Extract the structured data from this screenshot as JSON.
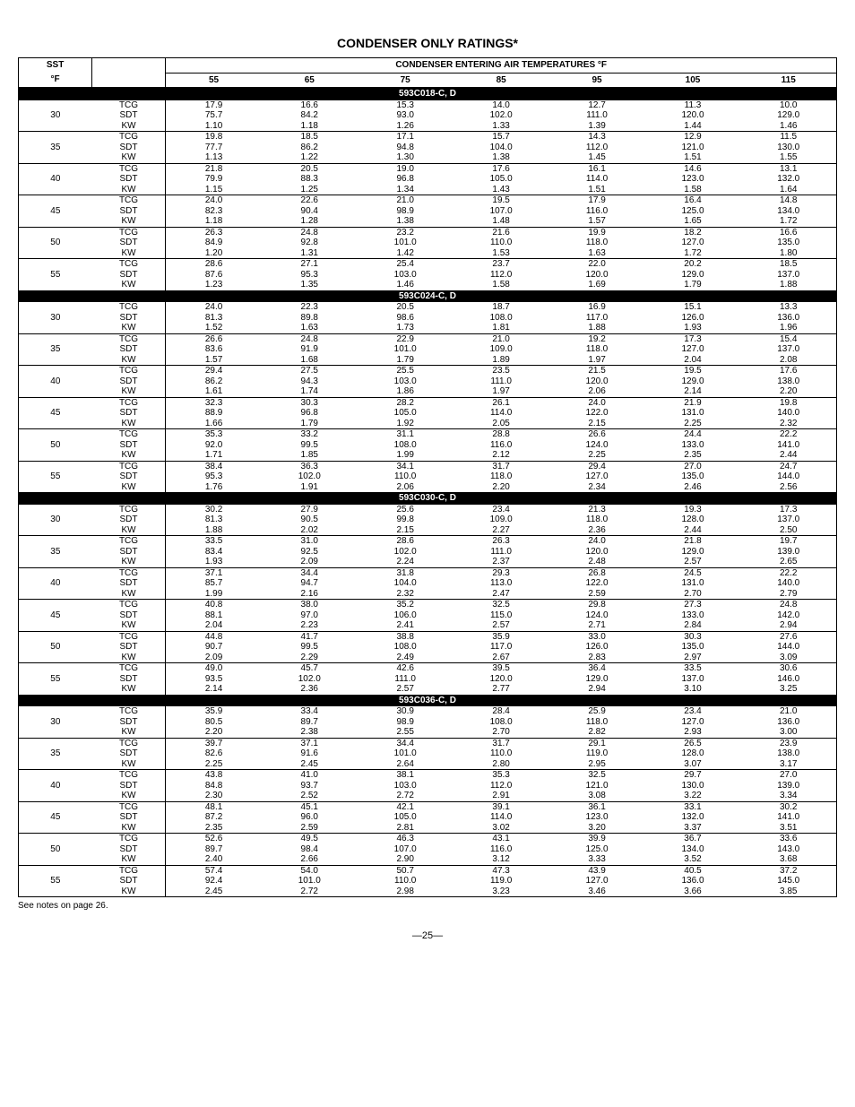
{
  "title": "CONDENSER ONLY RATINGS*",
  "footnote": "See notes on page 26.",
  "page_num": "—25—",
  "header": {
    "sst_label": "SST",
    "sst_unit": "°F",
    "span_label": "CONDENSER ENTERING AIR TEMPERATURES °F",
    "temps": [
      "55",
      "65",
      "75",
      "85",
      "95",
      "105",
      "115"
    ]
  },
  "params": [
    "TCG",
    "SDT",
    "KW"
  ],
  "sst_values": [
    "30",
    "35",
    "40",
    "45",
    "50",
    "55"
  ],
  "colors": {
    "section_bg": "#000000",
    "section_fg": "#ffffff",
    "border": "#000000"
  },
  "sections": [
    {
      "label": "593C018-C, D",
      "rows": [
        [
          [
            "17.9",
            "75.7",
            "1.10"
          ],
          [
            "16.6",
            "84.2",
            "1.18"
          ],
          [
            "15.3",
            "93.0",
            "1.26"
          ],
          [
            "14.0",
            "102.0",
            "1.33"
          ],
          [
            "12.7",
            "111.0",
            "1.39"
          ],
          [
            "11.3",
            "120.0",
            "1.44"
          ],
          [
            "10.0",
            "129.0",
            "1.46"
          ]
        ],
        [
          [
            "19.8",
            "77.7",
            "1.13"
          ],
          [
            "18.5",
            "86.2",
            "1.22"
          ],
          [
            "17.1",
            "94.8",
            "1.30"
          ],
          [
            "15.7",
            "104.0",
            "1.38"
          ],
          [
            "14.3",
            "112.0",
            "1.45"
          ],
          [
            "12.9",
            "121.0",
            "1.51"
          ],
          [
            "11.5",
            "130.0",
            "1.55"
          ]
        ],
        [
          [
            "21.8",
            "79.9",
            "1.15"
          ],
          [
            "20.5",
            "88.3",
            "1.25"
          ],
          [
            "19.0",
            "96.8",
            "1.34"
          ],
          [
            "17.6",
            "105.0",
            "1.43"
          ],
          [
            "16.1",
            "114.0",
            "1.51"
          ],
          [
            "14.6",
            "123.0",
            "1.58"
          ],
          [
            "13.1",
            "132.0",
            "1.64"
          ]
        ],
        [
          [
            "24.0",
            "82.3",
            "1.18"
          ],
          [
            "22.6",
            "90.4",
            "1.28"
          ],
          [
            "21.0",
            "98.9",
            "1.38"
          ],
          [
            "19.5",
            "107.0",
            "1.48"
          ],
          [
            "17.9",
            "116.0",
            "1.57"
          ],
          [
            "16.4",
            "125.0",
            "1.65"
          ],
          [
            "14.8",
            "134.0",
            "1.72"
          ]
        ],
        [
          [
            "26.3",
            "84.9",
            "1.20"
          ],
          [
            "24.8",
            "92.8",
            "1.31"
          ],
          [
            "23.2",
            "101.0",
            "1.42"
          ],
          [
            "21.6",
            "110.0",
            "1.53"
          ],
          [
            "19.9",
            "118.0",
            "1.63"
          ],
          [
            "18.2",
            "127.0",
            "1.72"
          ],
          [
            "16.6",
            "135.0",
            "1.80"
          ]
        ],
        [
          [
            "28.6",
            "87.6",
            "1.23"
          ],
          [
            "27.1",
            "95.3",
            "1.35"
          ],
          [
            "25.4",
            "103.0",
            "1.46"
          ],
          [
            "23.7",
            "112.0",
            "1.58"
          ],
          [
            "22.0",
            "120.0",
            "1.69"
          ],
          [
            "20.2",
            "129.0",
            "1.79"
          ],
          [
            "18.5",
            "137.0",
            "1.88"
          ]
        ]
      ]
    },
    {
      "label": "593C024-C, D",
      "rows": [
        [
          [
            "24.0",
            "81.3",
            "1.52"
          ],
          [
            "22.3",
            "89.8",
            "1.63"
          ],
          [
            "20.5",
            "98.6",
            "1.73"
          ],
          [
            "18.7",
            "108.0",
            "1.81"
          ],
          [
            "16.9",
            "117.0",
            "1.88"
          ],
          [
            "15.1",
            "126.0",
            "1.93"
          ],
          [
            "13.3",
            "136.0",
            "1.96"
          ]
        ],
        [
          [
            "26.6",
            "83.6",
            "1.57"
          ],
          [
            "24.8",
            "91.9",
            "1.68"
          ],
          [
            "22.9",
            "101.0",
            "1.79"
          ],
          [
            "21.0",
            "109.0",
            "1.89"
          ],
          [
            "19.2",
            "118.0",
            "1.97"
          ],
          [
            "17.3",
            "127.0",
            "2.04"
          ],
          [
            "15.4",
            "137.0",
            "2.08"
          ]
        ],
        [
          [
            "29.4",
            "86.2",
            "1.61"
          ],
          [
            "27.5",
            "94.3",
            "1.74"
          ],
          [
            "25.5",
            "103.0",
            "1.86"
          ],
          [
            "23.5",
            "111.0",
            "1.97"
          ],
          [
            "21.5",
            "120.0",
            "2.06"
          ],
          [
            "19.5",
            "129.0",
            "2.14"
          ],
          [
            "17.6",
            "138.0",
            "2.20"
          ]
        ],
        [
          [
            "32.3",
            "88.9",
            "1.66"
          ],
          [
            "30.3",
            "96.8",
            "1.79"
          ],
          [
            "28.2",
            "105.0",
            "1.92"
          ],
          [
            "26.1",
            "114.0",
            "2.05"
          ],
          [
            "24.0",
            "122.0",
            "2.15"
          ],
          [
            "21.9",
            "131.0",
            "2.25"
          ],
          [
            "19.8",
            "140.0",
            "2.32"
          ]
        ],
        [
          [
            "35.3",
            "92.0",
            "1.71"
          ],
          [
            "33.2",
            "99.5",
            "1.85"
          ],
          [
            "31.1",
            "108.0",
            "1.99"
          ],
          [
            "28.8",
            "116.0",
            "2.12"
          ],
          [
            "26.6",
            "124.0",
            "2.25"
          ],
          [
            "24.4",
            "133.0",
            "2.35"
          ],
          [
            "22.2",
            "141.0",
            "2.44"
          ]
        ],
        [
          [
            "38.4",
            "95.3",
            "1.76"
          ],
          [
            "36.3",
            "102.0",
            "1.91"
          ],
          [
            "34.1",
            "110.0",
            "2.06"
          ],
          [
            "31.7",
            "118.0",
            "2.20"
          ],
          [
            "29.4",
            "127.0",
            "2.34"
          ],
          [
            "27.0",
            "135.0",
            "2.46"
          ],
          [
            "24.7",
            "144.0",
            "2.56"
          ]
        ]
      ]
    },
    {
      "label": "593C030-C, D",
      "rows": [
        [
          [
            "30.2",
            "81.3",
            "1.88"
          ],
          [
            "27.9",
            "90.5",
            "2.02"
          ],
          [
            "25.6",
            "99.8",
            "2.15"
          ],
          [
            "23.4",
            "109.0",
            "2.27"
          ],
          [
            "21.3",
            "118.0",
            "2.36"
          ],
          [
            "19.3",
            "128.0",
            "2.44"
          ],
          [
            "17.3",
            "137.0",
            "2.50"
          ]
        ],
        [
          [
            "33.5",
            "83.4",
            "1.93"
          ],
          [
            "31.0",
            "92.5",
            "2.09"
          ],
          [
            "28.6",
            "102.0",
            "2.24"
          ],
          [
            "26.3",
            "111.0",
            "2.37"
          ],
          [
            "24.0",
            "120.0",
            "2.48"
          ],
          [
            "21.8",
            "129.0",
            "2.57"
          ],
          [
            "19.7",
            "139.0",
            "2.65"
          ]
        ],
        [
          [
            "37.1",
            "85.7",
            "1.99"
          ],
          [
            "34.4",
            "94.7",
            "2.16"
          ],
          [
            "31.8",
            "104.0",
            "2.32"
          ],
          [
            "29.3",
            "113.0",
            "2.47"
          ],
          [
            "26.8",
            "122.0",
            "2.59"
          ],
          [
            "24.5",
            "131.0",
            "2.70"
          ],
          [
            "22.2",
            "140.0",
            "2.79"
          ]
        ],
        [
          [
            "40.8",
            "88.1",
            "2.04"
          ],
          [
            "38.0",
            "97.0",
            "2.23"
          ],
          [
            "35.2",
            "106.0",
            "2.41"
          ],
          [
            "32.5",
            "115.0",
            "2.57"
          ],
          [
            "29.8",
            "124.0",
            "2.71"
          ],
          [
            "27.3",
            "133.0",
            "2.84"
          ],
          [
            "24.8",
            "142.0",
            "2.94"
          ]
        ],
        [
          [
            "44.8",
            "90.7",
            "2.09"
          ],
          [
            "41.7",
            "99.5",
            "2.29"
          ],
          [
            "38.8",
            "108.0",
            "2.49"
          ],
          [
            "35.9",
            "117.0",
            "2.67"
          ],
          [
            "33.0",
            "126.0",
            "2.83"
          ],
          [
            "30.3",
            "135.0",
            "2.97"
          ],
          [
            "27.6",
            "144.0",
            "3.09"
          ]
        ],
        [
          [
            "49.0",
            "93.5",
            "2.14"
          ],
          [
            "45.7",
            "102.0",
            "2.36"
          ],
          [
            "42.6",
            "111.0",
            "2.57"
          ],
          [
            "39.5",
            "120.0",
            "2.77"
          ],
          [
            "36.4",
            "129.0",
            "2.94"
          ],
          [
            "33.5",
            "137.0",
            "3.10"
          ],
          [
            "30.6",
            "146.0",
            "3.25"
          ]
        ]
      ]
    },
    {
      "label": "593C036-C, D",
      "rows": [
        [
          [
            "35.9",
            "80.5",
            "2.20"
          ],
          [
            "33.4",
            "89.7",
            "2.38"
          ],
          [
            "30.9",
            "98.9",
            "2.55"
          ],
          [
            "28.4",
            "108.0",
            "2.70"
          ],
          [
            "25.9",
            "118.0",
            "2.82"
          ],
          [
            "23.4",
            "127.0",
            "2.93"
          ],
          [
            "21.0",
            "136.0",
            "3.00"
          ]
        ],
        [
          [
            "39.7",
            "82.6",
            "2.25"
          ],
          [
            "37.1",
            "91.6",
            "2.45"
          ],
          [
            "34.4",
            "101.0",
            "2.64"
          ],
          [
            "31.7",
            "110.0",
            "2.80"
          ],
          [
            "29.1",
            "119.0",
            "2.95"
          ],
          [
            "26.5",
            "128.0",
            "3.07"
          ],
          [
            "23.9",
            "138.0",
            "3.17"
          ]
        ],
        [
          [
            "43.8",
            "84.8",
            "2.30"
          ],
          [
            "41.0",
            "93.7",
            "2.52"
          ],
          [
            "38.1",
            "103.0",
            "2.72"
          ],
          [
            "35.3",
            "112.0",
            "2.91"
          ],
          [
            "32.5",
            "121.0",
            "3.08"
          ],
          [
            "29.7",
            "130.0",
            "3.22"
          ],
          [
            "27.0",
            "139.0",
            "3.34"
          ]
        ],
        [
          [
            "48.1",
            "87.2",
            "2.35"
          ],
          [
            "45.1",
            "96.0",
            "2.59"
          ],
          [
            "42.1",
            "105.0",
            "2.81"
          ],
          [
            "39.1",
            "114.0",
            "3.02"
          ],
          [
            "36.1",
            "123.0",
            "3.20"
          ],
          [
            "33.1",
            "132.0",
            "3.37"
          ],
          [
            "30.2",
            "141.0",
            "3.51"
          ]
        ],
        [
          [
            "52.6",
            "89.7",
            "2.40"
          ],
          [
            "49.5",
            "98.4",
            "2.66"
          ],
          [
            "46.3",
            "107.0",
            "2.90"
          ],
          [
            "43.1",
            "116.0",
            "3.12"
          ],
          [
            "39.9",
            "125.0",
            "3.33"
          ],
          [
            "36.7",
            "134.0",
            "3.52"
          ],
          [
            "33.6",
            "143.0",
            "3.68"
          ]
        ],
        [
          [
            "57.4",
            "92.4",
            "2.45"
          ],
          [
            "54.0",
            "101.0",
            "2.72"
          ],
          [
            "50.7",
            "110.0",
            "2.98"
          ],
          [
            "47.3",
            "119.0",
            "3.23"
          ],
          [
            "43.9",
            "127.0",
            "3.46"
          ],
          [
            "40.5",
            "136.0",
            "3.66"
          ],
          [
            "37.2",
            "145.0",
            "3.85"
          ]
        ]
      ]
    }
  ]
}
